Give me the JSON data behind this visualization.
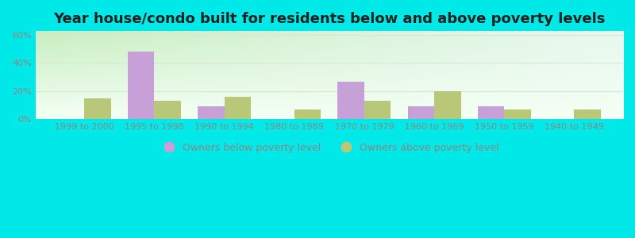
{
  "title": "Year house/condo built for residents below and above poverty levels",
  "categories": [
    "1999 to 2000",
    "1995 to 1998",
    "1990 to 1994",
    "1980 to 1989",
    "1970 to 1979",
    "1960 to 1969",
    "1950 to 1959",
    "1940 to 1949"
  ],
  "below_poverty": [
    0,
    48,
    9,
    0,
    27,
    9,
    9,
    0
  ],
  "above_poverty": [
    15,
    13,
    16,
    7,
    13,
    20,
    7,
    7
  ],
  "below_color": "#c8a0d8",
  "above_color": "#b8c878",
  "ylabel_ticks": [
    "0%",
    "20%",
    "40%",
    "60%"
  ],
  "yticks": [
    0,
    20,
    40,
    60
  ],
  "ylim": [
    0,
    63
  ],
  "legend_below": "Owners below poverty level",
  "legend_above": "Owners above poverty level",
  "bar_width": 0.38,
  "bg_color_topleft": "#c8eec0",
  "bg_color_topright": "#e8f8f0",
  "bg_color_bottom": "#f0fbf0",
  "outer_color": "#00e8e8",
  "title_fontsize": 13,
  "tick_fontsize": 8,
  "legend_fontsize": 9,
  "grid_color": "#d8e8d0",
  "tick_color": "#888888"
}
